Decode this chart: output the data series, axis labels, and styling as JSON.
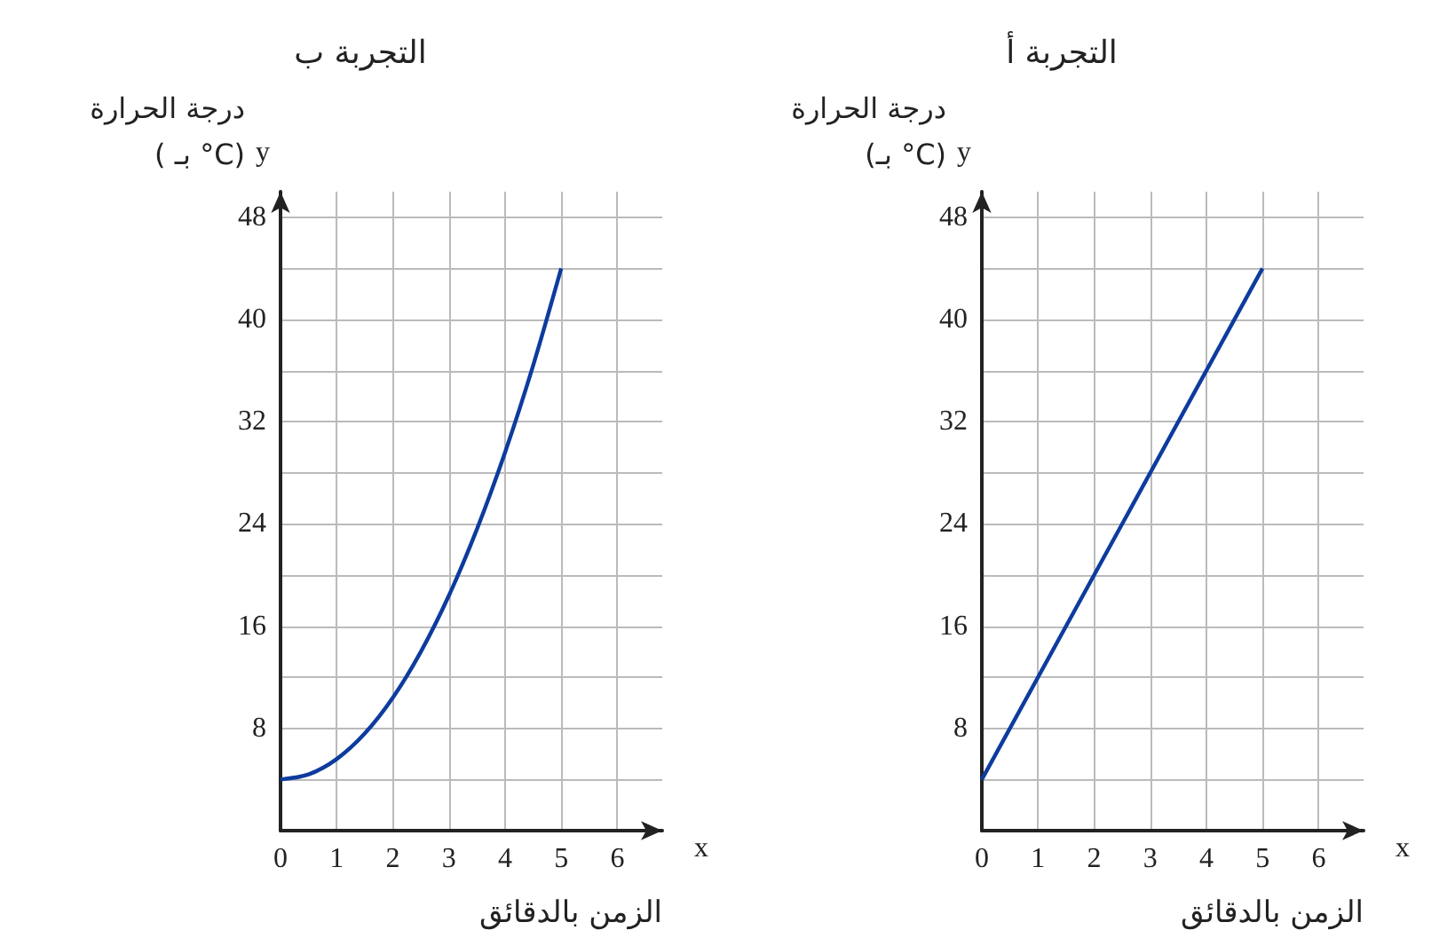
{
  "chart_data": [
    {
      "type": "line",
      "title": "التجربة ب",
      "xlabel": "الزمن بالدقائق",
      "ylabel": "درجة الحرارة\n( بـ °C)",
      "annotations": [
        "y",
        "x"
      ],
      "x": [
        0,
        0.5,
        1,
        1.5,
        2,
        2.5,
        3,
        3.5,
        4,
        4.5,
        5
      ],
      "series": [
        {
          "color": "#0d3b9e",
          "values": [
            4,
            4.4,
            5.6,
            7.6,
            10.4,
            14,
            18.4,
            23.6,
            29.6,
            36.4,
            44
          ]
        }
      ],
      "xlim": [
        0,
        6.8
      ],
      "ylim": [
        0,
        50
      ],
      "xticks": [
        0,
        1,
        2,
        3,
        4,
        5,
        6
      ],
      "yticks": [
        {
          "value": 0,
          "label": null
        },
        {
          "value": 4,
          "label": null
        },
        8,
        {
          "value": 12,
          "label": null
        },
        16,
        {
          "value": 20,
          "label": null
        },
        24,
        {
          "value": 28,
          "label": null
        },
        32,
        {
          "value": 36,
          "label": null
        },
        40,
        {
          "value": 44,
          "label": null
        },
        48
      ],
      "grid": true,
      "marker": "none",
      "line_style": "solid"
    },
    {
      "type": "line",
      "title": "التجربة أ",
      "xlabel": "الزمن بالدقائق",
      "ylabel": "درجة الحرارة\n(بـ °C)",
      "annotations": [
        "y",
        "x"
      ],
      "x": [
        0,
        5
      ],
      "series": [
        {
          "color": "#0d3b9e",
          "values": [
            4,
            44
          ]
        }
      ],
      "xlim": [
        0,
        6.8
      ],
      "ylim": [
        0,
        50
      ],
      "xticks": [
        0,
        1,
        2,
        3,
        4,
        5,
        6
      ],
      "yticks": [
        {
          "value": 0,
          "label": null
        },
        {
          "value": 4,
          "label": null
        },
        8,
        {
          "value": 12,
          "label": null
        },
        16,
        {
          "value": 20,
          "label": null
        },
        24,
        {
          "value": 28,
          "label": null
        },
        32,
        {
          "value": 36,
          "label": null
        },
        40,
        {
          "value": 44,
          "label": null
        },
        48
      ],
      "grid": true,
      "marker": "none",
      "line_style": "solid"
    }
  ]
}
